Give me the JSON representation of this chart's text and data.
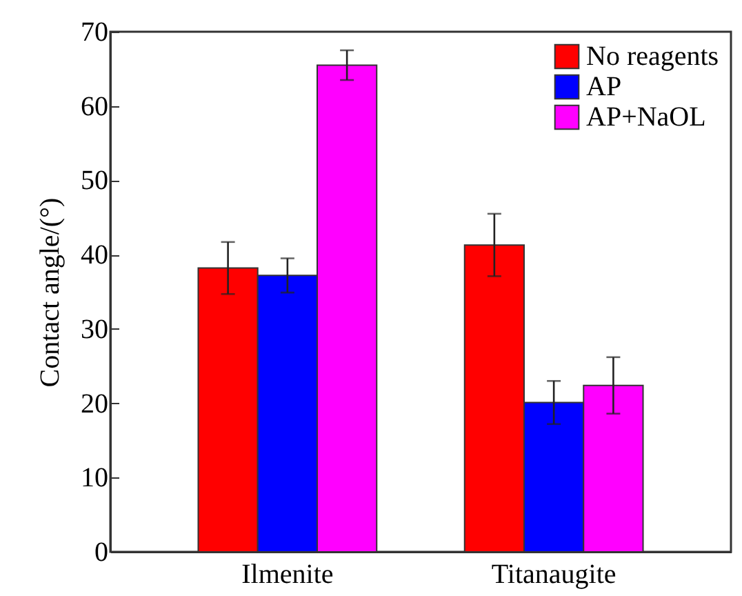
{
  "chart_data": {
    "type": "bar",
    "ylabel": "Contact angle/(°)",
    "categories": [
      "Ilmenite",
      "Titanaugite"
    ],
    "series": [
      {
        "name": "No reagents",
        "color": "#ff0000",
        "values": [
          38.2,
          41.3
        ],
        "errors": [
          3.5,
          4.2
        ]
      },
      {
        "name": "AP",
        "color": "#0000ff",
        "values": [
          37.2,
          20.1
        ],
        "errors": [
          2.3,
          2.9
        ]
      },
      {
        "name": "AP+NaOL",
        "color": "#ff00ff",
        "values": [
          65.5,
          22.4
        ],
        "errors": [
          2.0,
          3.8
        ]
      }
    ],
    "ylim": [
      0,
      70
    ],
    "yticks": [
      0,
      10,
      20,
      30,
      40,
      50,
      60,
      70
    ],
    "legend": "top right",
    "grid": false
  }
}
